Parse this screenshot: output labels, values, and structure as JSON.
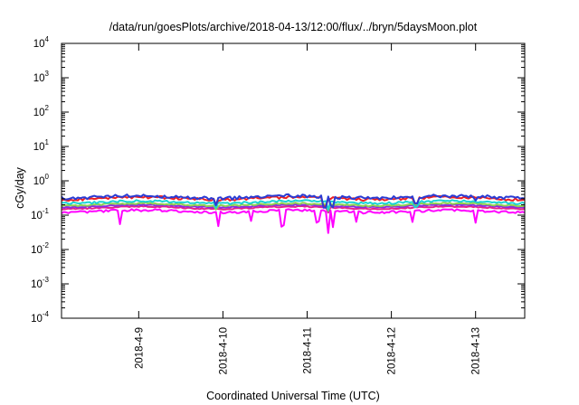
{
  "chart_data": {
    "type": "line",
    "title": "/data/run/goesPlots/archive/2018-04-13/12:00/flux/../bryn/5daysMoon.plot",
    "xlabel": "Coordinated Universal Time (UTC)",
    "ylabel": "cGy/day",
    "yscale": "log",
    "ylim": [
      0.0001,
      10000
    ],
    "xlim": [
      "2018-04-08 02:00",
      "2018-04-13 14:00"
    ],
    "grid": false,
    "legend": "none",
    "y_ticks": [
      {
        "base": "10",
        "exp": "-4"
      },
      {
        "base": "10",
        "exp": "-3"
      },
      {
        "base": "10",
        "exp": "-2"
      },
      {
        "base": "10",
        "exp": "-1"
      },
      {
        "base": "10",
        "exp": "0"
      },
      {
        "base": "10",
        "exp": "1"
      },
      {
        "base": "10",
        "exp": "2"
      },
      {
        "base": "10",
        "exp": "3"
      },
      {
        "base": "10",
        "exp": "4"
      }
    ],
    "x_ticks": [
      {
        "label": "2018-4-9",
        "date": "2018-04-09 00:00"
      },
      {
        "label": "2018-4-10",
        "date": "2018-04-10 00:00"
      },
      {
        "label": "2018-4-11",
        "date": "2018-04-11 00:00"
      },
      {
        "label": "2018-4-12",
        "date": "2018-04-12 00:00"
      },
      {
        "label": "2018-4-13",
        "date": "2018-04-13 00:00"
      }
    ],
    "series": [
      {
        "color": "#2a3bd4",
        "base": 0.34,
        "noise": 0.11,
        "dips": [
          [
            "2018-04-09 22:00",
            0.6
          ],
          [
            "2018-04-11 05:00",
            0.5
          ],
          [
            "2018-04-11 07:00",
            0.55
          ],
          [
            "2018-04-12 07:00",
            0.65
          ],
          [
            "2018-04-13 00:00",
            0.7
          ]
        ]
      },
      {
        "color": "#ee2020",
        "base": 0.31,
        "noise": 0.09,
        "dips": [
          [
            "2018-04-09 22:00",
            0.65
          ],
          [
            "2018-04-11 05:00",
            0.55
          ],
          [
            "2018-04-12 07:00",
            0.7
          ]
        ]
      },
      {
        "color": "#19d3d3",
        "base": 0.24,
        "noise": 0.07,
        "dips": [
          [
            "2018-04-09 22:00",
            0.7
          ],
          [
            "2018-04-11 06:00",
            0.6
          ],
          [
            "2018-04-12 07:00",
            0.75
          ]
        ]
      },
      {
        "color": "#8fd14f",
        "base": 0.205,
        "noise": 0.05,
        "dips": [
          [
            "2018-04-09 22:00",
            0.75
          ],
          [
            "2018-04-11 06:00",
            0.65
          ]
        ]
      },
      {
        "color": "#8a2be2",
        "base": 0.185,
        "noise": 0.04,
        "dips": [
          [
            "2018-04-11 06:00",
            0.7
          ]
        ]
      },
      {
        "color": "#e6208a",
        "base": 0.165,
        "noise": 0.04,
        "dips": [
          [
            "2018-04-11 06:00",
            0.7
          ]
        ]
      },
      {
        "color": "#ff00ff",
        "base": 0.13,
        "noise": 0.08,
        "dips": [
          [
            "2018-04-08 18:30",
            0.4
          ],
          [
            "2018-04-09 22:30",
            0.4
          ],
          [
            "2018-04-10 08:00",
            0.5
          ],
          [
            "2018-04-10 17:00",
            0.35
          ],
          [
            "2018-04-11 03:00",
            0.45
          ],
          [
            "2018-04-11 06:00",
            0.22
          ],
          [
            "2018-04-11 07:30",
            0.35
          ],
          [
            "2018-04-11 14:00",
            0.5
          ],
          [
            "2018-04-12 06:00",
            0.5
          ],
          [
            "2018-04-13 00:00",
            0.45
          ]
        ]
      }
    ]
  }
}
